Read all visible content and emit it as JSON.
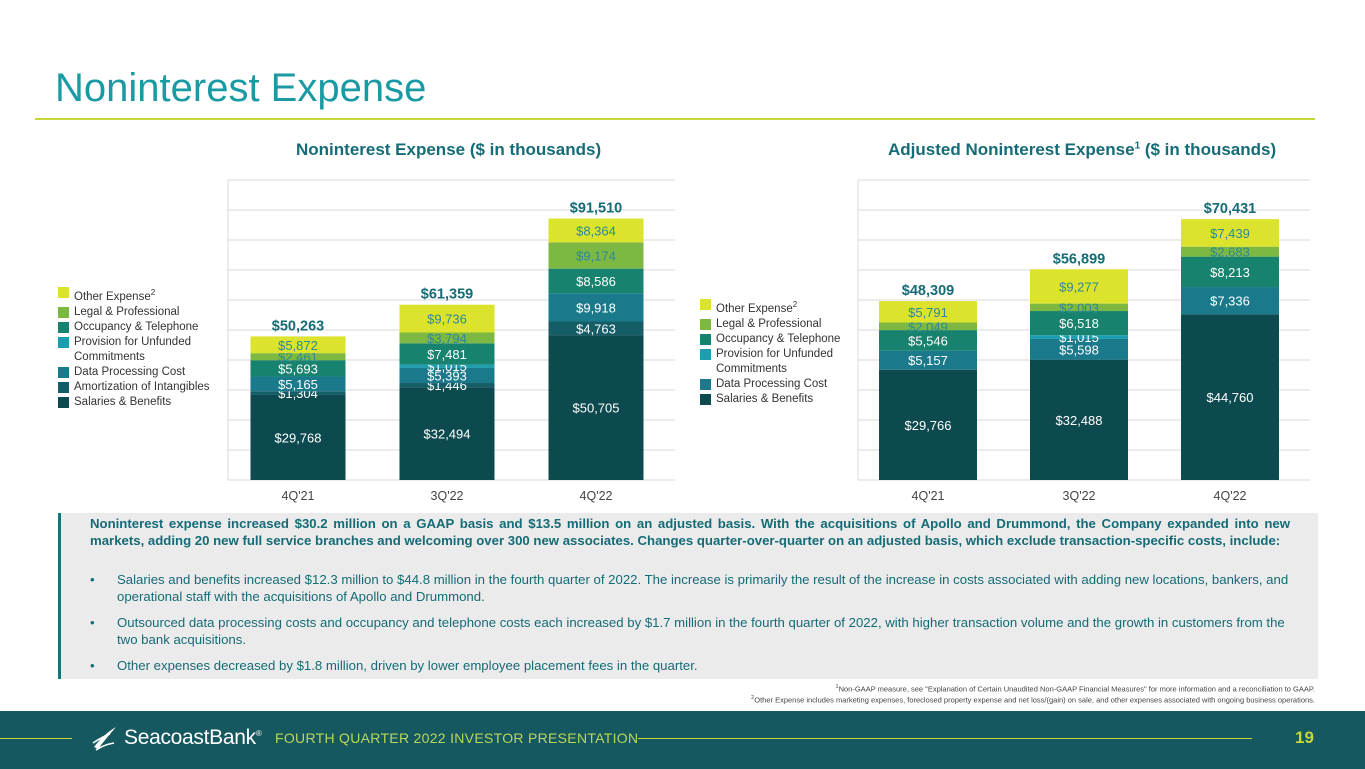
{
  "page": {
    "title": "Noninterest Expense",
    "footer_text": "FOURTH QUARTER 2022 INVESTOR PRESENTATION",
    "page_number": "19",
    "logo_text": "SeacoastBank",
    "logo_trademark": "®"
  },
  "colors": {
    "Salaries & Benefits": "#0d4a4f",
    "Amortization of Intangibles": "#145c66",
    "Data Processing Cost": "#1a7a8c",
    "Provision for Unfunded Commitments": "#1b9eb0",
    "Occupancy & Telephone": "#17826d",
    "Legal & Professional": "#7db843",
    "Other Expense": "#dbe32c"
  },
  "legend_left": {
    "items": [
      {
        "label": "Other Expense",
        "sup": "2",
        "key": "Other Expense"
      },
      {
        "label": "Legal & Professional",
        "key": "Legal & Professional"
      },
      {
        "label": "Occupancy & Telephone",
        "key": "Occupancy & Telephone"
      },
      {
        "label": "Provision for Unfunded Commitments",
        "key": "Provision for Unfunded Commitments"
      },
      {
        "label": "Data Processing Cost",
        "key": "Data Processing Cost"
      },
      {
        "label": "Amortization of Intangibles",
        "key": "Amortization of Intangibles"
      },
      {
        "label": "Salaries & Benefits",
        "key": "Salaries & Benefits"
      }
    ]
  },
  "legend_right": {
    "items": [
      {
        "label": "Other Expense",
        "sup": "2",
        "key": "Other Expense"
      },
      {
        "label": "Legal & Professional",
        "key": "Legal & Professional"
      },
      {
        "label": "Occupancy & Telephone",
        "key": "Occupancy & Telephone"
      },
      {
        "label": "Provision for Unfunded Commitments",
        "key": "Provision for Unfunded Commitments"
      },
      {
        "label": "Data Processing Cost",
        "key": "Data Processing Cost"
      },
      {
        "label": "Salaries & Benefits",
        "key": "Salaries & Benefits"
      }
    ]
  },
  "chart_data": [
    {
      "type": "bar",
      "stacked": true,
      "title": "Noninterest Expense ($ in thousands)",
      "categories": [
        "4Q'21",
        "3Q'22",
        "4Q'22"
      ],
      "totals": [
        "$50,263",
        "$61,359",
        "$91,510"
      ],
      "total_values": [
        50263,
        61359,
        91510
      ],
      "ylim": [
        0,
        105000
      ],
      "grid": true,
      "series": [
        {
          "name": "Salaries & Benefits",
          "values": [
            29768,
            32494,
            50705
          ],
          "labels": [
            "$29,768",
            "$32,494",
            "$50,705"
          ]
        },
        {
          "name": "Amortization of Intangibles",
          "values": [
            1304,
            1446,
            4763
          ],
          "labels": [
            "$1,304",
            "$1,446",
            "$4,763"
          ]
        },
        {
          "name": "Data Processing Cost",
          "values": [
            5165,
            5393,
            9918
          ],
          "labels": [
            "$5,165",
            "$5,393",
            "$9,918"
          ]
        },
        {
          "name": "Provision for Unfunded Commitments",
          "values": [
            0,
            1015,
            0
          ],
          "labels": [
            "",
            "$1,015",
            ""
          ]
        },
        {
          "name": "Occupancy & Telephone",
          "values": [
            5693,
            7481,
            8586
          ],
          "labels": [
            "$5,693",
            "$7,481",
            "$8,586"
          ]
        },
        {
          "name": "Legal & Professional",
          "values": [
            2461,
            3794,
            9174
          ],
          "labels": [
            "$2,461",
            "$3,794",
            "$9,174"
          ]
        },
        {
          "name": "Other Expense",
          "values": [
            5872,
            9736,
            8364
          ],
          "labels": [
            "$5,872",
            "$9,736",
            "$8,364"
          ]
        }
      ]
    },
    {
      "type": "bar",
      "stacked": true,
      "title": "Adjusted Noninterest Expense",
      "title_sup": "1",
      "title_suffix": " ($ in thousands)",
      "categories": [
        "4Q'21",
        "3Q'22",
        "4Q'22"
      ],
      "totals": [
        "$48,309",
        "$56,899",
        "$70,431"
      ],
      "total_values": [
        48309,
        56899,
        70431
      ],
      "ylim": [
        0,
        81000
      ],
      "grid": true,
      "series": [
        {
          "name": "Salaries & Benefits",
          "values": [
            29766,
            32488,
            44760
          ],
          "labels": [
            "$29,766",
            "$32,488",
            "$44,760"
          ]
        },
        {
          "name": "Data Processing Cost",
          "values": [
            5157,
            5598,
            7336
          ],
          "labels": [
            "$5,157",
            "$5,598",
            "$7,336"
          ]
        },
        {
          "name": "Provision for Unfunded Commitments",
          "values": [
            0,
            1015,
            0
          ],
          "labels": [
            "",
            "$1,015",
            ""
          ]
        },
        {
          "name": "Occupancy & Telephone",
          "values": [
            5546,
            6518,
            8213
          ],
          "labels": [
            "$5,546",
            "$6,518",
            "$8,213"
          ]
        },
        {
          "name": "Legal & Professional",
          "values": [
            2049,
            2003,
            2683
          ],
          "labels": [
            "$2,049",
            "$2,003",
            "$2,683"
          ]
        },
        {
          "name": "Other Expense",
          "values": [
            5791,
            9277,
            7439
          ],
          "labels": [
            "$5,791",
            "$9,277",
            "$7,439"
          ]
        }
      ]
    }
  ],
  "notes": {
    "lead": "Noninterest expense increased $30.2 million on a GAAP basis and $13.5 million on an adjusted basis. With the acquisitions of Apollo and Drummond, the Company expanded into new markets, adding 20 new full service branches and welcoming over 300 new associates. Changes quarter-over-quarter on an adjusted basis, which exclude transaction-specific costs, include:",
    "bullet_char": "•",
    "bullets": [
      "Salaries and benefits increased $12.3 million to $44.8 million in the fourth quarter of 2022. The increase is primarily the result of the increase in costs associated with adding new locations, bankers, and operational staff with the acquisitions of Apollo and Drummond.",
      "Outsourced data processing costs and occupancy and telephone costs each increased by $1.7 million in the fourth quarter of 2022, with higher transaction volume and the growth in customers from the two bank acquisitions.",
      "Other expenses decreased by $1.8 million, driven by lower employee placement fees in the quarter."
    ]
  },
  "footnotes": {
    "note1_sup": "1",
    "note1": "Non-GAAP measure, see \"Explanation of Certain Unaudited Non-GAAP Financial Measures\" for more information and a reconciliation to GAAP.",
    "note2_sup": "2",
    "note2": "Other Expense includes marketing expenses, foreclosed property expense and net loss/(gain) on sale, and other expenses associated with ongoing business operations."
  }
}
